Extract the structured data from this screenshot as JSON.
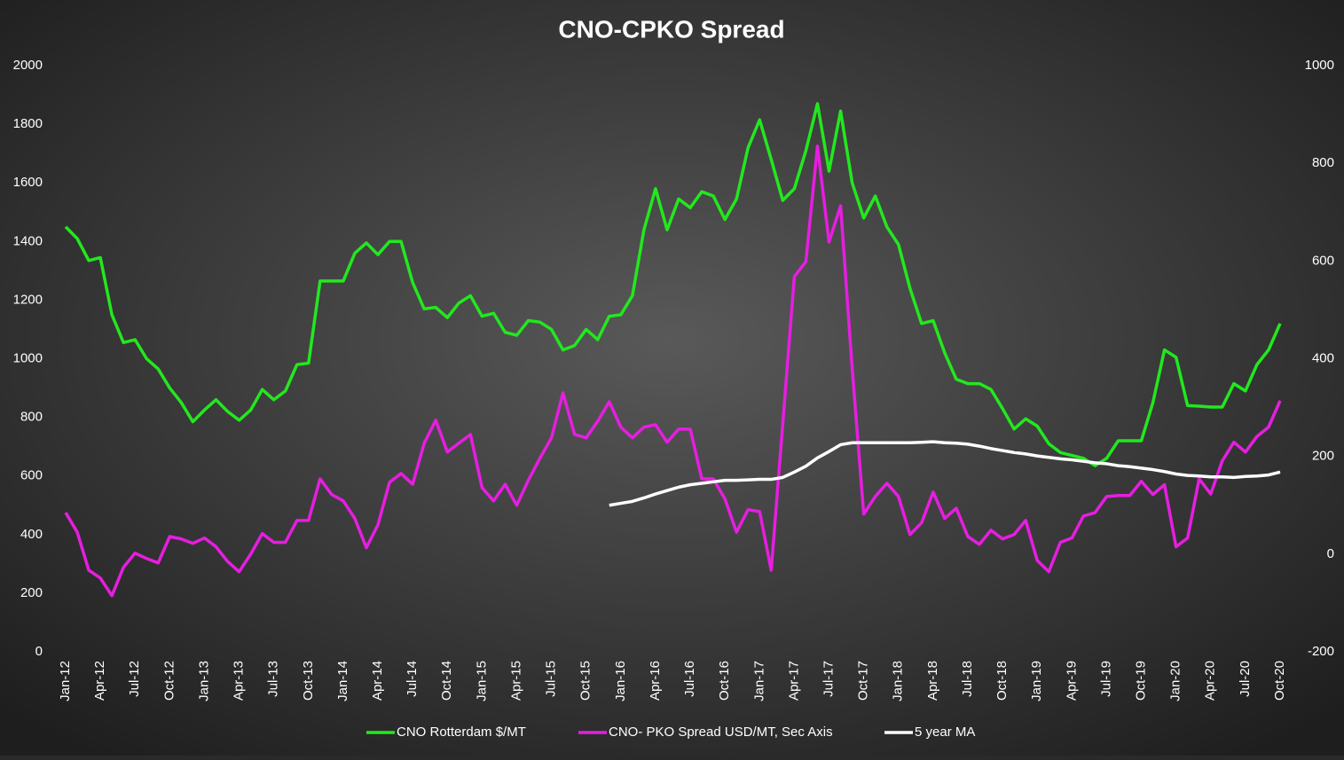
{
  "chart_data": {
    "type": "line",
    "title": "CNO-CPKO Spread",
    "categories": [
      "Jan-12",
      null,
      null,
      "Apr-12",
      null,
      null,
      "Jul-12",
      null,
      null,
      "Oct-12",
      null,
      null,
      "Jan-13",
      null,
      null,
      "Apr-13",
      null,
      null,
      "Jul-13",
      null,
      null,
      "Oct-13",
      null,
      null,
      "Jan-14",
      null,
      null,
      "Apr-14",
      null,
      null,
      "Jul-14",
      null,
      null,
      "Oct-14",
      null,
      null,
      "Jan-15",
      null,
      null,
      "Apr-15",
      null,
      null,
      "Jul-15",
      null,
      null,
      "Oct-15",
      null,
      null,
      "Jan-16",
      null,
      null,
      "Apr-16",
      null,
      null,
      "Jul-16",
      null,
      null,
      "Oct-16",
      null,
      null,
      "Jan-17",
      null,
      null,
      "Apr-17",
      null,
      null,
      "Jul-17",
      null,
      null,
      "Oct-17",
      null,
      null,
      "Jan-18",
      null,
      null,
      "Apr-18",
      null,
      null,
      "Jul-18",
      null,
      null,
      "Oct-18",
      null,
      null,
      "Jan-19",
      null,
      null,
      "Apr-19",
      null,
      null,
      "Jul-19",
      null,
      null,
      "Oct-19",
      null,
      null,
      "Jan-20",
      null,
      null,
      "Apr-20",
      null,
      null,
      "Jul-20",
      null,
      null,
      "Oct-20"
    ],
    "series": [
      {
        "name": "CNO Rotterdam $/MT",
        "color": "#22e81e",
        "axis": "y",
        "values": [
          1450,
          1410,
          1335,
          1345,
          1150,
          1055,
          1065,
          1000,
          965,
          900,
          850,
          785,
          825,
          860,
          820,
          790,
          825,
          895,
          860,
          890,
          980,
          985,
          1265,
          1265,
          1265,
          1360,
          1395,
          1355,
          1400,
          1400,
          1260,
          1170,
          1175,
          1140,
          1190,
          1215,
          1145,
          1155,
          1090,
          1080,
          1130,
          1125,
          1100,
          1030,
          1045,
          1100,
          1065,
          1145,
          1150,
          1215,
          1440,
          1580,
          1440,
          1545,
          1515,
          1570,
          1555,
          1475,
          1545,
          1720,
          1815,
          1680,
          1540,
          1580,
          1710,
          1870,
          1640,
          1845,
          1600,
          1480,
          1555,
          1450,
          1390,
          1240,
          1120,
          1130,
          1020,
          930,
          915,
          915,
          895,
          830,
          760,
          795,
          770,
          710,
          680,
          670,
          660,
          635,
          660,
          720,
          720,
          720,
          850,
          1030,
          1005,
          840,
          838,
          835,
          835,
          915,
          890,
          980,
          1030,
          1120
        ]
      },
      {
        "name": "CNO- PKO Spread USD/MT, Sec Axis",
        "color": "#e61ee0",
        "axis": "y2",
        "values": [
          85,
          45,
          -33,
          -49,
          -85,
          -27,
          2,
          -9,
          -18,
          36,
          31,
          22,
          33,
          15,
          -15,
          -36,
          0,
          42,
          24,
          24,
          69,
          69,
          154,
          122,
          109,
          73,
          13,
          60,
          147,
          165,
          143,
          227,
          274,
          209,
          227,
          245,
          136,
          109,
          143,
          100,
          151,
          196,
          238,
          330,
          245,
          238,
          272,
          312,
          260,
          238,
          260,
          265,
          229,
          256,
          256,
          154,
          154,
          113,
          45,
          91,
          87,
          -33,
          267,
          568,
          599,
          835,
          639,
          713,
          380,
          82,
          118,
          145,
          118,
          40,
          64,
          127,
          73,
          94,
          36,
          20,
          49,
          31,
          40,
          69,
          -13,
          -36,
          24,
          33,
          78,
          85,
          118,
          120,
          120,
          149,
          122,
          142,
          15,
          33,
          154,
          123,
          191,
          229,
          209,
          241,
          260,
          314
        ]
      },
      {
        "name": "5 year MA",
        "color": "#ffffff",
        "axis": "y2",
        "values": [
          null,
          null,
          null,
          null,
          null,
          null,
          null,
          null,
          null,
          null,
          null,
          null,
          null,
          null,
          null,
          null,
          null,
          null,
          null,
          null,
          null,
          null,
          null,
          null,
          null,
          null,
          null,
          null,
          null,
          null,
          null,
          null,
          null,
          null,
          null,
          null,
          null,
          null,
          null,
          null,
          null,
          null,
          null,
          null,
          null,
          null,
          null,
          100,
          104,
          108,
          115,
          123,
          130,
          137,
          142,
          145,
          148,
          151,
          151,
          152,
          153,
          153,
          157,
          168,
          180,
          197,
          210,
          224,
          228,
          228,
          228,
          228,
          228,
          228,
          229,
          230,
          228,
          227,
          225,
          221,
          216,
          212,
          208,
          205,
          201,
          198,
          195,
          193,
          190,
          187,
          185,
          181,
          179,
          176,
          173,
          169,
          164,
          161,
          160,
          158,
          158,
          157,
          159,
          160,
          162,
          168
        ]
      }
    ],
    "ylim": [
      0,
      2000
    ],
    "yticks": [
      0,
      200,
      400,
      600,
      800,
      1000,
      1200,
      1400,
      1600,
      1800,
      2000
    ],
    "y2lim": [
      -200,
      1000
    ],
    "y2ticks": [
      -200,
      0,
      200,
      400,
      600,
      800,
      1000
    ],
    "grid": false,
    "legend": "bottom"
  }
}
